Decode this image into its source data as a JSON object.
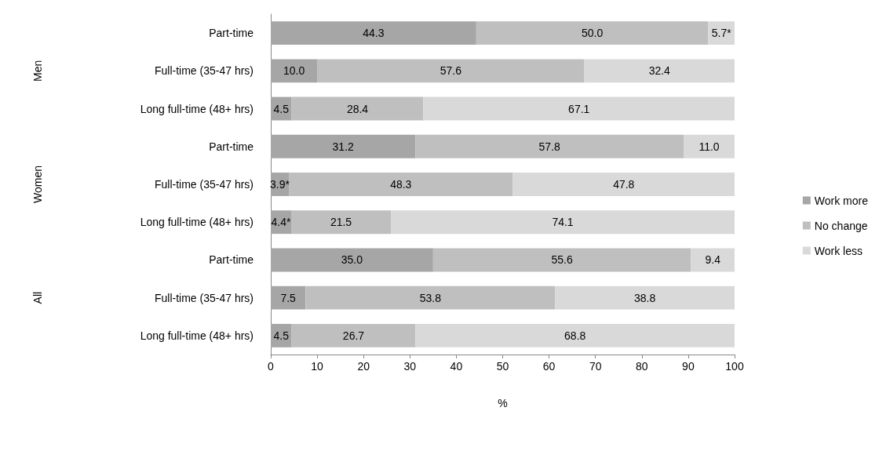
{
  "chart_data": {
    "type": "bar",
    "orientation": "horizontal",
    "stacked": true,
    "xlabel": "%",
    "categories": [
      "Part-time",
      "Full-time (35-47 hrs)",
      "Long full-time (48+ hrs)",
      "Part-time",
      "Full-time (35-47 hrs)",
      "Long full-time (48+ hrs)",
      "Part-time",
      "Full-time (35-47 hrs)",
      "Long full-time (48+ hrs)"
    ],
    "series": [
      {
        "name": "Work more",
        "color": "#a6a6a6",
        "values": [
          44.3,
          10.0,
          4.5,
          31.2,
          3.9,
          4.4,
          35.0,
          7.5,
          4.5
        ],
        "value_labels": [
          "44.3",
          "10.0",
          "4.5",
          "31.2",
          "3.9*",
          "4.4*",
          "35.0",
          "7.5",
          "4.5"
        ]
      },
      {
        "name": "No change",
        "color": "#bfbfbf",
        "values": [
          50.0,
          57.6,
          28.4,
          57.8,
          48.3,
          21.5,
          55.6,
          53.8,
          26.7
        ],
        "value_labels": [
          "50.0",
          "57.6",
          "28.4",
          "57.8",
          "48.3",
          "21.5",
          "55.6",
          "53.8",
          "26.7"
        ]
      },
      {
        "name": "Work less",
        "color": "#d9d9d9",
        "values": [
          5.7,
          32.4,
          67.1,
          11.0,
          47.8,
          74.1,
          9.4,
          38.8,
          68.8
        ],
        "value_labels": [
          "5.7*",
          "32.4",
          "67.1",
          "11.0",
          "47.8",
          "74.1",
          "9.4",
          "38.8",
          "68.8"
        ]
      }
    ],
    "annotations": [
      "Men",
      "Women",
      "All"
    ],
    "xlim": [
      0,
      100
    ],
    "xticks": [
      0,
      10,
      20,
      30,
      40,
      50,
      60,
      70,
      80,
      90,
      100
    ],
    "grid": false,
    "legend": "right"
  }
}
